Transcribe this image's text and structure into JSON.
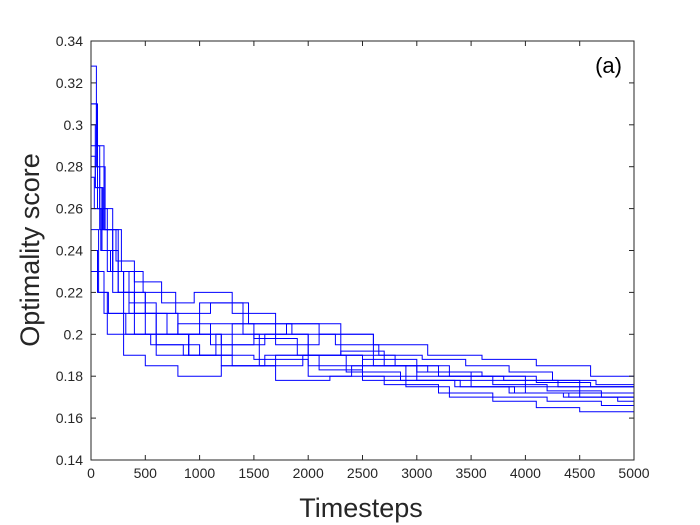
{
  "chart_data": {
    "type": "line",
    "title": "",
    "panel_label": "(a)",
    "xlabel": "Timesteps",
    "ylabel": "Optimality score",
    "xlim": [
      0,
      5000
    ],
    "ylim": [
      0.14,
      0.34
    ],
    "xticks": [
      0,
      500,
      1000,
      1500,
      2000,
      2500,
      3000,
      3500,
      4000,
      4500,
      5000
    ],
    "yticks": [
      0.14,
      0.16,
      0.18,
      0.2,
      0.22,
      0.24,
      0.26,
      0.28,
      0.3,
      0.32,
      0.34
    ],
    "ytick_labels": [
      "0.14",
      "0.16",
      "0.18",
      "0.2",
      "0.22",
      "0.24",
      "0.26",
      "0.28",
      "0.3",
      "0.32",
      "0.34"
    ],
    "grid": false,
    "line_color": "#0000ff",
    "axis_color": "#262626",
    "series": [
      {
        "x": [
          0,
          60,
          150,
          300,
          500,
          800,
          1100,
          1500,
          2000,
          2500,
          3000,
          3500,
          4000,
          4500,
          5000
        ],
        "values": [
          0.31,
          0.26,
          0.23,
          0.21,
          0.2,
          0.205,
          0.195,
          0.2,
          0.19,
          0.185,
          0.18,
          0.178,
          0.175,
          0.172,
          0.17
        ]
      },
      {
        "x": [
          0,
          50,
          120,
          250,
          400,
          700,
          1000,
          1400,
          1800,
          2300,
          2800,
          3300,
          3800,
          4300,
          5000
        ],
        "values": [
          0.328,
          0.29,
          0.25,
          0.22,
          0.21,
          0.2,
          0.215,
          0.2,
          0.205,
          0.19,
          0.185,
          0.18,
          0.178,
          0.175,
          0.173
        ]
      },
      {
        "x": [
          0,
          40,
          100,
          200,
          350,
          600,
          900,
          1300,
          1700,
          2100,
          2600,
          3100,
          3600,
          4100,
          4600,
          5000
        ],
        "values": [
          0.3,
          0.27,
          0.24,
          0.22,
          0.215,
          0.2,
          0.19,
          0.205,
          0.195,
          0.2,
          0.185,
          0.182,
          0.18,
          0.177,
          0.175,
          0.172
        ]
      },
      {
        "x": [
          0,
          80,
          200,
          400,
          600,
          900,
          1200,
          1600,
          2000,
          2400,
          2900,
          3400,
          3900,
          4400,
          5000
        ],
        "values": [
          0.28,
          0.25,
          0.23,
          0.2,
          0.19,
          0.2,
          0.185,
          0.19,
          0.18,
          0.185,
          0.178,
          0.175,
          0.172,
          0.17,
          0.168
        ]
      },
      {
        "x": [
          0,
          30,
          90,
          180,
          300,
          500,
          800,
          1200,
          1600,
          2000,
          2500,
          3000,
          3500,
          4000,
          4500,
          5000
        ],
        "values": [
          0.275,
          0.26,
          0.24,
          0.23,
          0.22,
          0.21,
          0.2,
          0.195,
          0.2,
          0.19,
          0.188,
          0.182,
          0.18,
          0.178,
          0.175,
          0.174
        ]
      },
      {
        "x": [
          0,
          100,
          250,
          500,
          800,
          1100,
          1500,
          1900,
          2300,
          2700,
          3200,
          3700,
          4200,
          4700,
          5000
        ],
        "values": [
          0.26,
          0.24,
          0.22,
          0.21,
          0.2,
          0.205,
          0.198,
          0.19,
          0.192,
          0.185,
          0.18,
          0.176,
          0.173,
          0.17,
          0.168
        ]
      },
      {
        "x": [
          0,
          70,
          160,
          320,
          550,
          850,
          1150,
          1550,
          1950,
          2350,
          2850,
          3350,
          3850,
          4350,
          4850,
          5000
        ],
        "values": [
          0.25,
          0.22,
          0.21,
          0.2,
          0.195,
          0.19,
          0.2,
          0.185,
          0.19,
          0.182,
          0.178,
          0.175,
          0.172,
          0.17,
          0.168,
          0.166
        ]
      },
      {
        "x": [
          0,
          60,
          150,
          300,
          500,
          800,
          1200,
          1700,
          2200,
          2700,
          3200,
          3700,
          4200,
          4700,
          5000
        ],
        "values": [
          0.24,
          0.22,
          0.2,
          0.19,
          0.185,
          0.18,
          0.185,
          0.178,
          0.18,
          0.176,
          0.172,
          0.17,
          0.168,
          0.166,
          0.165
        ]
      },
      {
        "x": [
          0,
          120,
          300,
          600,
          1000,
          1500,
          2000,
          2500,
          3000,
          3500,
          4000,
          4500,
          5000
        ],
        "values": [
          0.23,
          0.21,
          0.2,
          0.195,
          0.19,
          0.188,
          0.185,
          0.18,
          0.178,
          0.175,
          0.172,
          0.17,
          0.168
        ]
      },
      {
        "x": [
          0,
          50,
          130,
          280,
          480,
          780,
          1100,
          1450,
          1850,
          2250,
          2650,
          3050,
          3450,
          3850,
          4250,
          4650,
          5000
        ],
        "values": [
          0.31,
          0.28,
          0.25,
          0.23,
          0.22,
          0.21,
          0.215,
          0.205,
          0.2,
          0.195,
          0.19,
          0.188,
          0.185,
          0.182,
          0.178,
          0.176,
          0.175
        ]
      },
      {
        "x": [
          0,
          80,
          200,
          350,
          600,
          900,
          1300,
          1700,
          2100,
          2500,
          2900,
          3300,
          3700,
          4100,
          4500,
          5000
        ],
        "values": [
          0.29,
          0.26,
          0.23,
          0.21,
          0.2,
          0.19,
          0.185,
          0.19,
          0.183,
          0.178,
          0.175,
          0.17,
          0.168,
          0.165,
          0.163,
          0.16
        ]
      },
      {
        "x": [
          0,
          40,
          110,
          230,
          400,
          650,
          950,
          1300,
          1700,
          2100,
          2600,
          3100,
          3600,
          4100,
          4600,
          5000
        ],
        "values": [
          0.285,
          0.27,
          0.25,
          0.235,
          0.225,
          0.215,
          0.22,
          0.21,
          0.205,
          0.2,
          0.195,
          0.19,
          0.188,
          0.185,
          0.18,
          0.178
        ]
      }
    ]
  }
}
